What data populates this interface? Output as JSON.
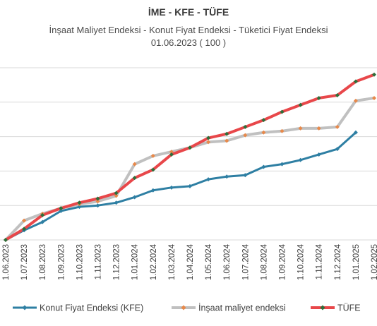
{
  "chart_data": {
    "type": "line",
    "title": "İME - KFE - TÜFE",
    "subtitle": "İnşaat Maliyet Endeksi - Konut Fiyat Endeksi - Tüketici Fiyat Endeksi",
    "subtitle2": "01.06.2023 ( 100 )",
    "grid": true,
    "legend_position": "bottom",
    "x": [
      "1.06.2023",
      "1.07.2023",
      "1.08.2023",
      "1.09.2023",
      "1.10.2023",
      "1.11.2023",
      "1.12.2023",
      "1.01.2024",
      "1.02.2024",
      "1.03.2024",
      "1.04.2024",
      "1.05.2024",
      "1.06.2024",
      "1.07.2024",
      "1.08.2024",
      "1.09.2024",
      "1.10.2024",
      "1.11.2024",
      "1.12.2024",
      "1.01.2025",
      "1.02.2025"
    ],
    "series": [
      {
        "name": "Konut Fiyat Endeksi (KFE)",
        "color": "#2e7fa3",
        "width": 3,
        "marker": "diamond",
        "values": [
          100,
          107,
          113,
          121,
          124,
          125,
          127,
          131,
          136,
          138,
          139,
          144,
          146,
          147,
          153,
          155,
          158,
          162,
          166,
          178,
          null
        ]
      },
      {
        "name": "İnşaat maliyet endeksi",
        "color": "#c0c0c0",
        "marker_color": "#e8894a",
        "width": 4,
        "marker": "diamond",
        "values": [
          100,
          114,
          119,
          123,
          126,
          128,
          132,
          155,
          161,
          164,
          167,
          171,
          172,
          176,
          178,
          179,
          181,
          181,
          182,
          201,
          203
        ]
      },
      {
        "name": "TÜFE",
        "color": "#e8474a",
        "marker_color": "#2e6e3a",
        "width": 4,
        "marker": "diamond",
        "values": [
          100,
          108,
          118,
          123,
          127,
          130,
          134,
          145,
          151,
          162,
          167,
          174,
          177,
          182,
          187,
          193,
          198,
          203,
          205,
          215,
          220
        ]
      }
    ]
  }
}
